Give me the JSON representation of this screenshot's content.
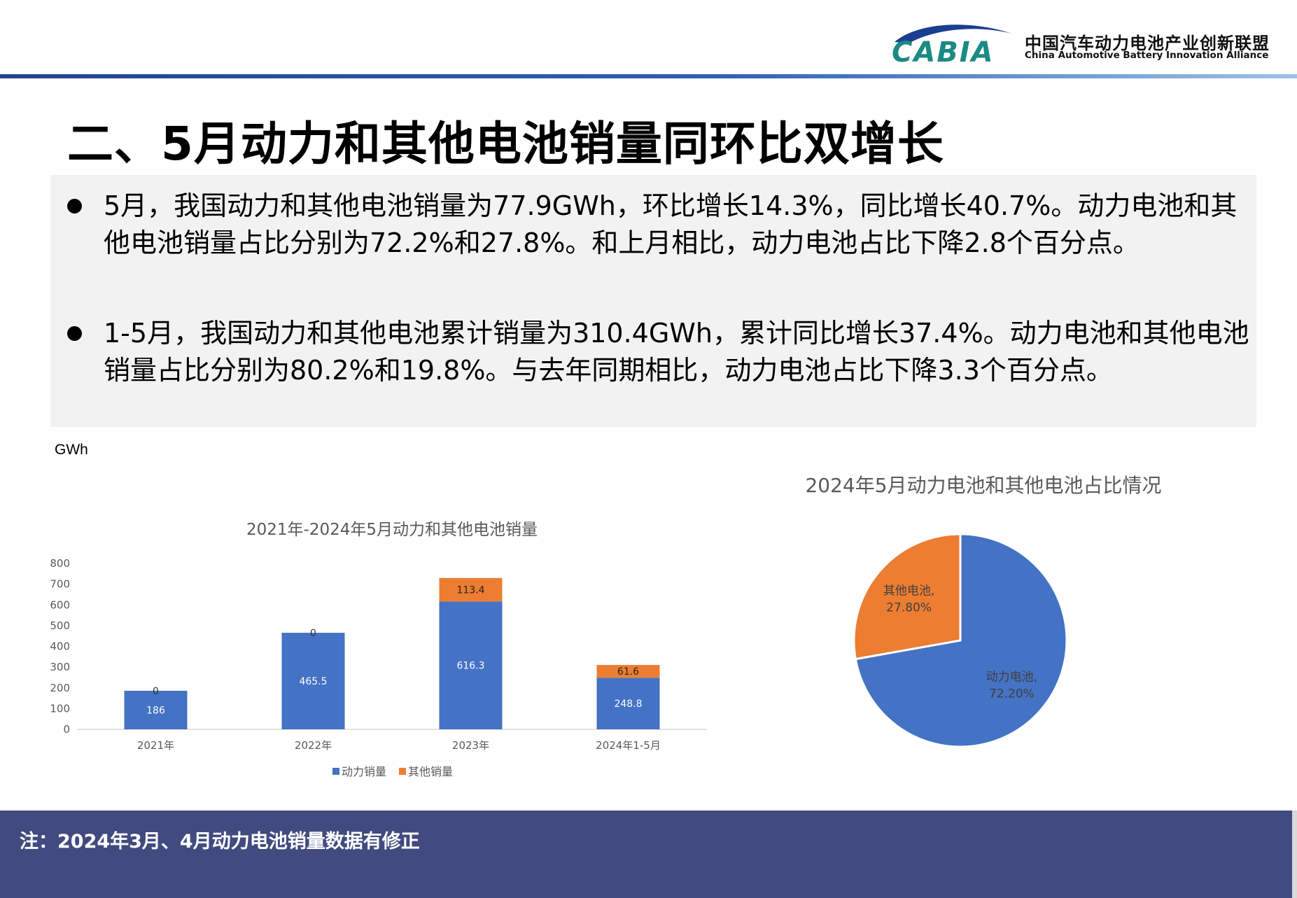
{
  "header": {
    "logo_text": "CABIA",
    "org_name_cn": "中国汽车动力电池产业创新联盟",
    "org_name_en": "China Automotive Battery Innovation Alliance"
  },
  "title": "二、5月动力和其他电池销量同环比双增长",
  "bullets": [
    "5月，我国动力和其他电池销量为77.9GWh，环比增长14.3%，同比增长40.7%。动力电池和其他电池销量占比分别为72.2%和27.8%。和上月相比，动力电池占比下降2.8个百分点。",
    "1-5月，我国动力和其他电池累计销量为310.4GWh，累计同比增长37.4%。动力电池和其他电池销量占比分别为80.2%和19.8%。与去年同期相比，动力电池占比下降3.3个百分点。"
  ],
  "chart_data": [
    {
      "type": "bar",
      "stacked": true,
      "title": "2021年-2024年5月动力和其他电池销量",
      "ylabel": "GWh",
      "categories": [
        "2021年",
        "2022年",
        "2023年",
        "2024年1-5月"
      ],
      "series": [
        {
          "name": "动力销量",
          "values": [
            186,
            465.5,
            616.3,
            248.8
          ],
          "color": "#4472c4"
        },
        {
          "name": "其他销量",
          "values": [
            0,
            0,
            113.4,
            61.6
          ],
          "color": "#ed7d31"
        }
      ],
      "ylim": [
        0,
        800
      ],
      "yticks": [
        0,
        100,
        200,
        300,
        400,
        500,
        600,
        700,
        800
      ],
      "grid": false,
      "legend": "bottom"
    },
    {
      "type": "pie",
      "title": "2024年5月动力电池和其他电池占比情况",
      "slices": [
        {
          "label": "动力电池",
          "value": 72.2,
          "display": "72.20%",
          "color": "#4472c4"
        },
        {
          "label": "其他电池",
          "value": 27.8,
          "display": "27.80%",
          "color": "#ed7d31"
        }
      ]
    }
  ],
  "footer": {
    "note": "注：2024年3月、4月动力电池销量数据有修正"
  }
}
